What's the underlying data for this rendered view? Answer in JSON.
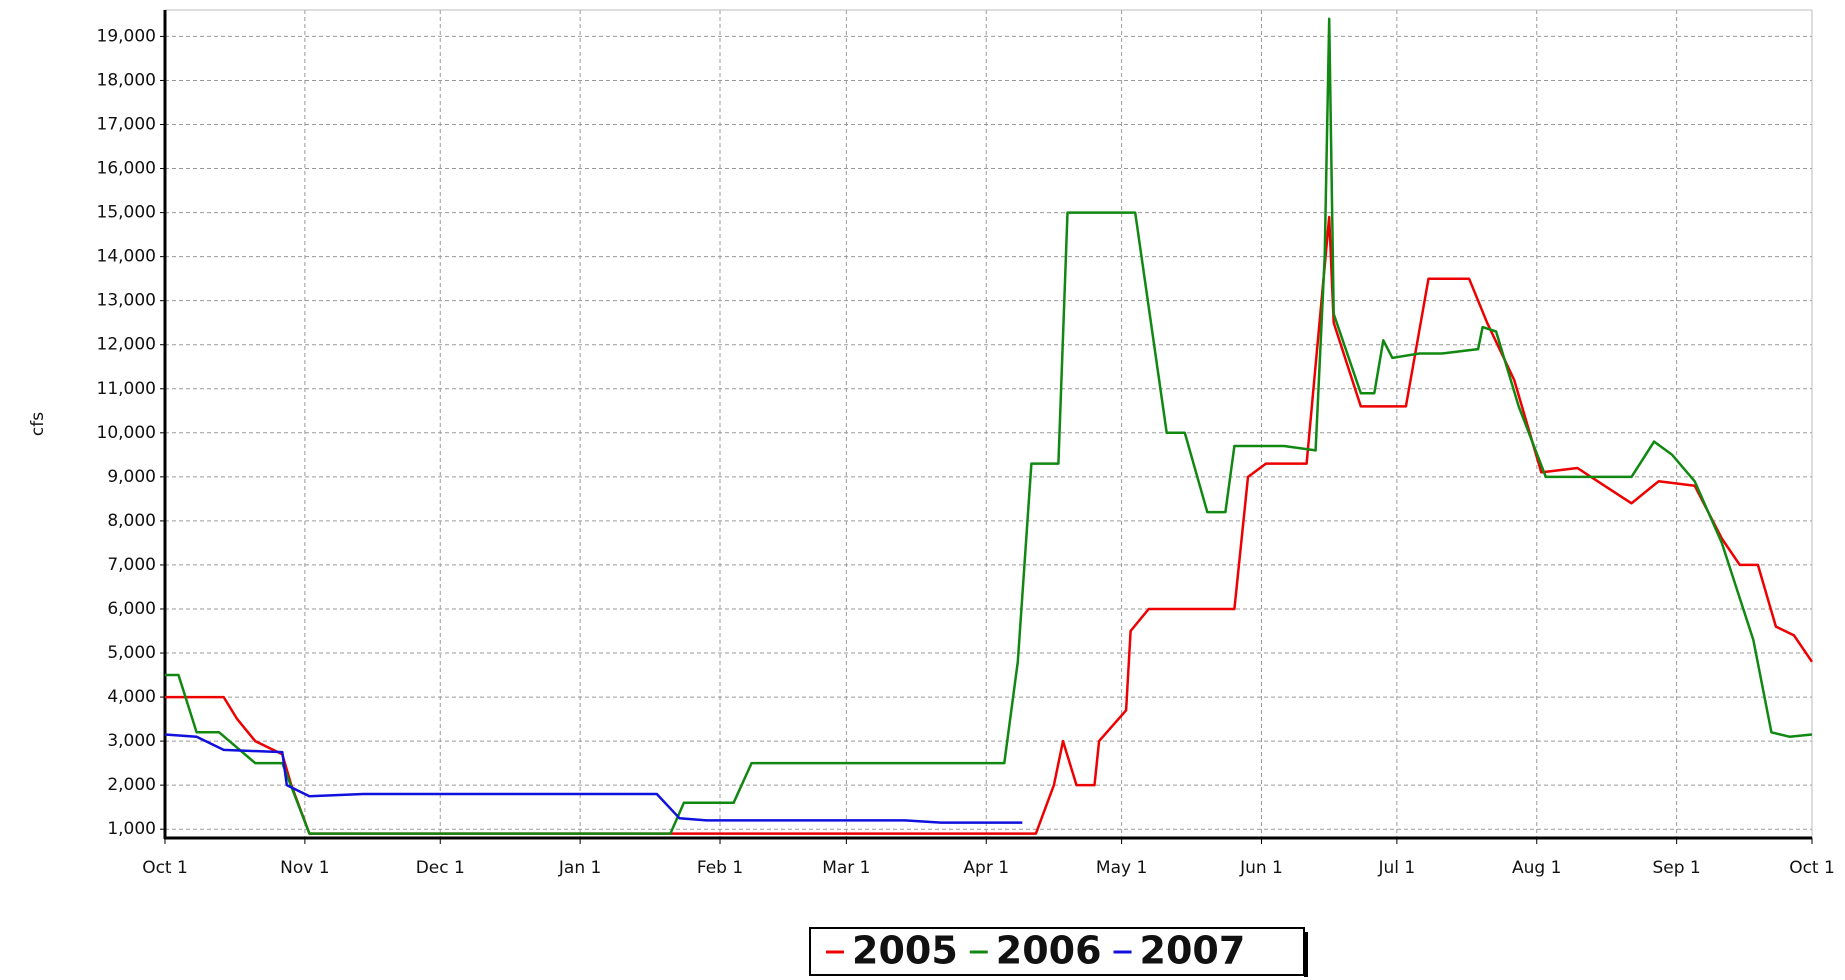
{
  "chart_data": {
    "type": "line",
    "y_label": "cfs",
    "xlim": [
      0,
      365
    ],
    "xticks": [
      {
        "value": 0,
        "label": "Oct 1"
      },
      {
        "value": 31,
        "label": "Nov 1"
      },
      {
        "value": 61,
        "label": "Dec 1"
      },
      {
        "value": 92,
        "label": "Jan 1"
      },
      {
        "value": 123,
        "label": "Feb 1"
      },
      {
        "value": 151,
        "label": "Mar 1"
      },
      {
        "value": 182,
        "label": "Apr 1"
      },
      {
        "value": 212,
        "label": "May 1"
      },
      {
        "value": 243,
        "label": "Jun 1"
      },
      {
        "value": 273,
        "label": "Jul 1"
      },
      {
        "value": 304,
        "label": "Aug 1"
      },
      {
        "value": 335,
        "label": "Sep 1"
      },
      {
        "value": 365,
        "label": "Oct 1"
      }
    ],
    "ylim": [
      800,
      19600
    ],
    "yticks": [
      {
        "value": 1000,
        "label": "1,000"
      },
      {
        "value": 2000,
        "label": "2,000"
      },
      {
        "value": 3000,
        "label": "3,000"
      },
      {
        "value": 4000,
        "label": "4,000"
      },
      {
        "value": 5000,
        "label": "5,000"
      },
      {
        "value": 6000,
        "label": "6,000"
      },
      {
        "value": 7000,
        "label": "7,000"
      },
      {
        "value": 8000,
        "label": "8,000"
      },
      {
        "value": 9000,
        "label": "9,000"
      },
      {
        "value": 10000,
        "label": "10,000"
      },
      {
        "value": 11000,
        "label": "11,000"
      },
      {
        "value": 12000,
        "label": "12,000"
      },
      {
        "value": 13000,
        "label": "13,000"
      },
      {
        "value": 14000,
        "label": "14,000"
      },
      {
        "value": 15000,
        "label": "15,000"
      },
      {
        "value": 16000,
        "label": "16,000"
      },
      {
        "value": 17000,
        "label": "17,000"
      },
      {
        "value": 18000,
        "label": "18,000"
      },
      {
        "value": 19000,
        "label": "19,000"
      }
    ],
    "grid": true,
    "legend": "bottom",
    "series": [
      {
        "name": "2005",
        "color": "#ee0000",
        "x": [
          0,
          13,
          16,
          20,
          26,
          28,
          32,
          193,
          197,
          199,
          202,
          206,
          207,
          213,
          214,
          218,
          237,
          240,
          244,
          253,
          258,
          259,
          265,
          275,
          280,
          289,
          293,
          299,
          305,
          313,
          319,
          325,
          331,
          339,
          345,
          349,
          353,
          357,
          361,
          365
        ],
        "values": [
          4000,
          4000,
          3500,
          3000,
          2700,
          2000,
          900,
          900,
          2000,
          3000,
          2000,
          2000,
          3000,
          3700,
          5500,
          6000,
          6000,
          9000,
          9300,
          9300,
          14900,
          12500,
          10600,
          10600,
          13500,
          13500,
          12500,
          11200,
          9100,
          9200,
          8800,
          8400,
          8900,
          8800,
          7600,
          7000,
          7000,
          5600,
          5400,
          4800
        ]
      },
      {
        "name": "2006",
        "color": "#118811",
        "x": [
          0,
          3,
          7,
          12,
          20,
          26,
          32,
          112,
          115,
          126,
          130,
          186,
          189,
          192,
          198,
          200,
          215,
          222,
          226,
          231,
          235,
          237,
          248,
          255,
          257,
          258,
          259,
          265,
          268,
          270,
          272,
          278,
          283,
          291,
          292,
          295,
          300,
          306,
          325,
          330,
          334,
          339,
          345,
          352,
          356,
          360,
          365
        ],
        "values": [
          4500,
          4500,
          3200,
          3200,
          2500,
          2500,
          900,
          900,
          1600,
          1600,
          2500,
          2500,
          4800,
          9300,
          9300,
          15000,
          15000,
          10000,
          10000,
          8200,
          8200,
          9700,
          9700,
          9600,
          14000,
          19400,
          12700,
          10900,
          10900,
          12100,
          11700,
          11800,
          11800,
          11900,
          12400,
          12300,
          10600,
          9000,
          9000,
          9800,
          9500,
          8900,
          7500,
          5300,
          3200,
          3100,
          3150
        ]
      },
      {
        "name": "2007",
        "color": "#1111dd",
        "x": [
          0,
          7,
          13,
          26,
          27,
          32,
          44,
          60,
          109,
          114,
          120,
          164,
          172,
          190
        ],
        "values": [
          3150,
          3100,
          2800,
          2750,
          2000,
          1750,
          1800,
          1800,
          1800,
          1250,
          1200,
          1200,
          1150,
          1150
        ]
      }
    ]
  }
}
